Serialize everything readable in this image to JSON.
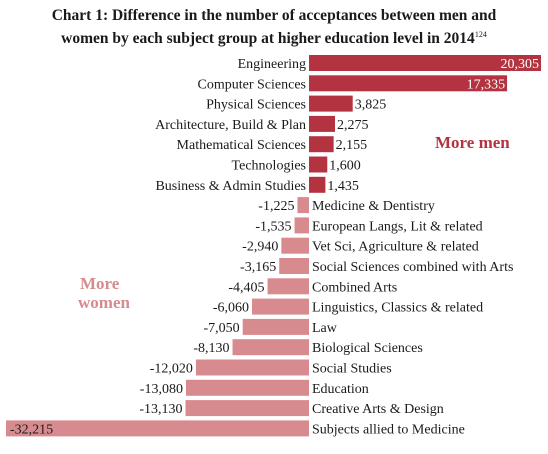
{
  "title": "Chart 1: Difference in the number of acceptances between men and women by each subject group at higher education level in 2014",
  "title_line1": "Chart 1: Difference in the number of acceptances between men and",
  "title_line2": "women by each subject group at higher education level in 2014",
  "title_footnote": "124",
  "annotations": {
    "more_men": "More men",
    "more_women_line1": "More",
    "more_women_line2": "women"
  },
  "colors": {
    "positive": "#b33440",
    "negative": "#d88b8e",
    "more_men_text": "#b33440",
    "more_women_text": "#d88b8e"
  },
  "chart_data": {
    "type": "bar",
    "orientation": "horizontal",
    "categories": [
      "Engineering",
      "Computer Sciences",
      "Physical Sciences",
      "Architecture, Build & Plan",
      "Mathematical Sciences",
      "Technologies",
      "Business & Admin Studies",
      "Medicine & Dentistry",
      "European Langs, Lit & related",
      "Vet Sci, Agriculture & related",
      "Social Sciences combined with Arts",
      "Combined Arts",
      "Linguistics, Classics & related",
      "Law",
      "Biological Sciences",
      "Social Studies",
      "Education",
      "Creative Arts & Design",
      "Subjects allied to Medicine"
    ],
    "values": [
      20305,
      17335,
      3825,
      2275,
      2155,
      1600,
      1435,
      -1225,
      -1535,
      -2940,
      -3165,
      -4405,
      -6060,
      -7050,
      -8130,
      -12020,
      -13080,
      -13130,
      -32215
    ],
    "value_labels": [
      "20,305",
      "17,335",
      "3,825",
      "2,275",
      "2,155",
      "1,600",
      "1,435",
      "-1,225",
      "-1,535",
      "-2,940",
      "-3,165",
      "-4,405",
      "-6,060",
      "-7,050",
      "-8,130",
      "-12,020",
      "-13,080",
      "-13,130",
      "-32,215"
    ],
    "xlim": [
      -32215,
      20305
    ],
    "grid": false,
    "legend": "none"
  }
}
